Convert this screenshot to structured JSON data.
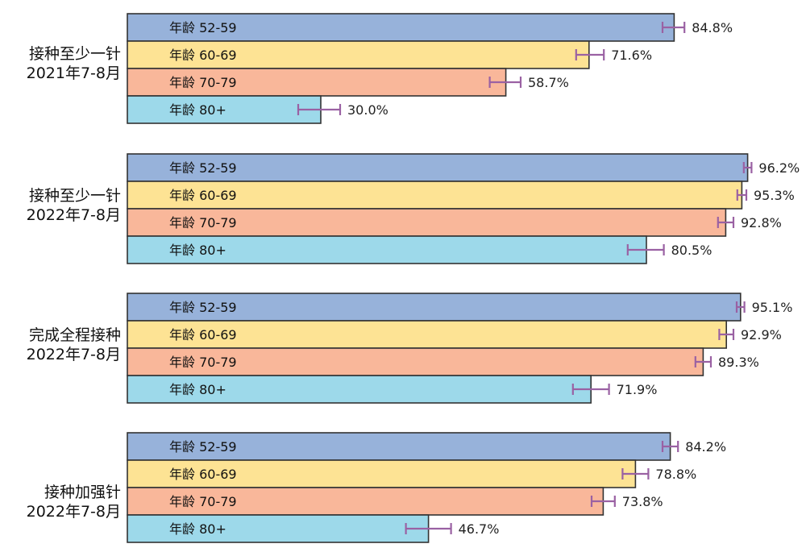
{
  "chart_data": {
    "type": "bar",
    "orientation": "horizontal",
    "series": [
      {
        "name": "年龄 52-59",
        "color": "#97b2da"
      },
      {
        "name": "年龄 60-69",
        "color": "#fde394"
      },
      {
        "name": "年龄 70-79",
        "color": "#f9b79a"
      },
      {
        "name": "年龄 80+",
        "color": "#9dd9ea"
      }
    ],
    "groups": [
      {
        "label_line1": "接种至少一针",
        "label_line2": "2021年7-8月",
        "values": [
          84.8,
          71.6,
          58.7,
          30.0
        ],
        "value_labels": [
          "84.8%",
          "71.6%",
          "58.7%",
          "30.0%"
        ],
        "error_low": [
          83.0,
          69.6,
          56.2,
          26.5
        ],
        "error_high": [
          86.4,
          73.9,
          61.0,
          33.0
        ]
      },
      {
        "label_line1": "接种至少一针",
        "label_line2": "2022年7-8月",
        "values": [
          96.2,
          95.3,
          92.8,
          80.5
        ],
        "value_labels": [
          "96.2%",
          "95.3%",
          "92.8%",
          "80.5%"
        ],
        "error_low": [
          95.6,
          94.6,
          91.6,
          77.6
        ],
        "error_high": [
          96.8,
          96.0,
          94.0,
          83.2
        ]
      },
      {
        "label_line1": "完成全程接种",
        "label_line2": "2022年7-8月",
        "values": [
          95.1,
          92.9,
          89.3,
          71.9
        ],
        "value_labels": [
          "95.1%",
          "92.9%",
          "89.3%",
          "71.9%"
        ],
        "error_low": [
          94.5,
          91.8,
          88.1,
          69.1
        ],
        "error_high": [
          95.7,
          94.0,
          90.5,
          74.7
        ]
      },
      {
        "label_line1": "接种加强针",
        "label_line2": "2022年7-8月",
        "values": [
          84.2,
          78.8,
          73.8,
          46.7
        ],
        "value_labels": [
          "84.2%",
          "78.8%",
          "73.8%",
          "46.7%"
        ],
        "error_low": [
          83.0,
          76.8,
          72.0,
          43.2
        ],
        "error_high": [
          85.4,
          80.8,
          75.6,
          50.2
        ]
      }
    ],
    "xlim": [
      0,
      100
    ],
    "error_bar_color": "#9a61a3",
    "bar_border_color": "#333333"
  }
}
